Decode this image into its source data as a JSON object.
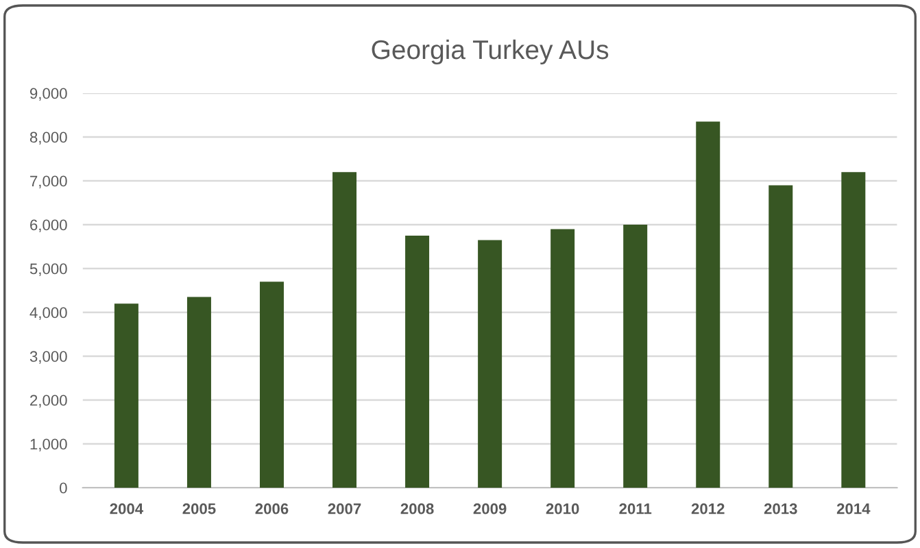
{
  "chart_data": {
    "type": "bar",
    "title": "Georgia Turkey AUs",
    "categories": [
      "2004",
      "2005",
      "2006",
      "2007",
      "2008",
      "2009",
      "2010",
      "2011",
      "2012",
      "2013",
      "2014"
    ],
    "values": [
      4200,
      4350,
      4700,
      7200,
      5750,
      5650,
      5900,
      6000,
      8350,
      6900,
      7200
    ],
    "color": "#375623",
    "ylim": [
      0,
      9000
    ],
    "yticks": [
      {
        "value": 0,
        "label": "0"
      },
      {
        "value": 1000,
        "label": "1,000"
      },
      {
        "value": 2000,
        "label": "2,000"
      },
      {
        "value": 3000,
        "label": "3,000"
      },
      {
        "value": 4000,
        "label": "4,000"
      },
      {
        "value": 5000,
        "label": "5,000"
      },
      {
        "value": 6000,
        "label": "6,000"
      },
      {
        "value": 7000,
        "label": "7,000"
      },
      {
        "value": 8000,
        "label": "8,000"
      },
      {
        "value": 9000,
        "label": "9,000"
      }
    ],
    "grid": "y"
  }
}
